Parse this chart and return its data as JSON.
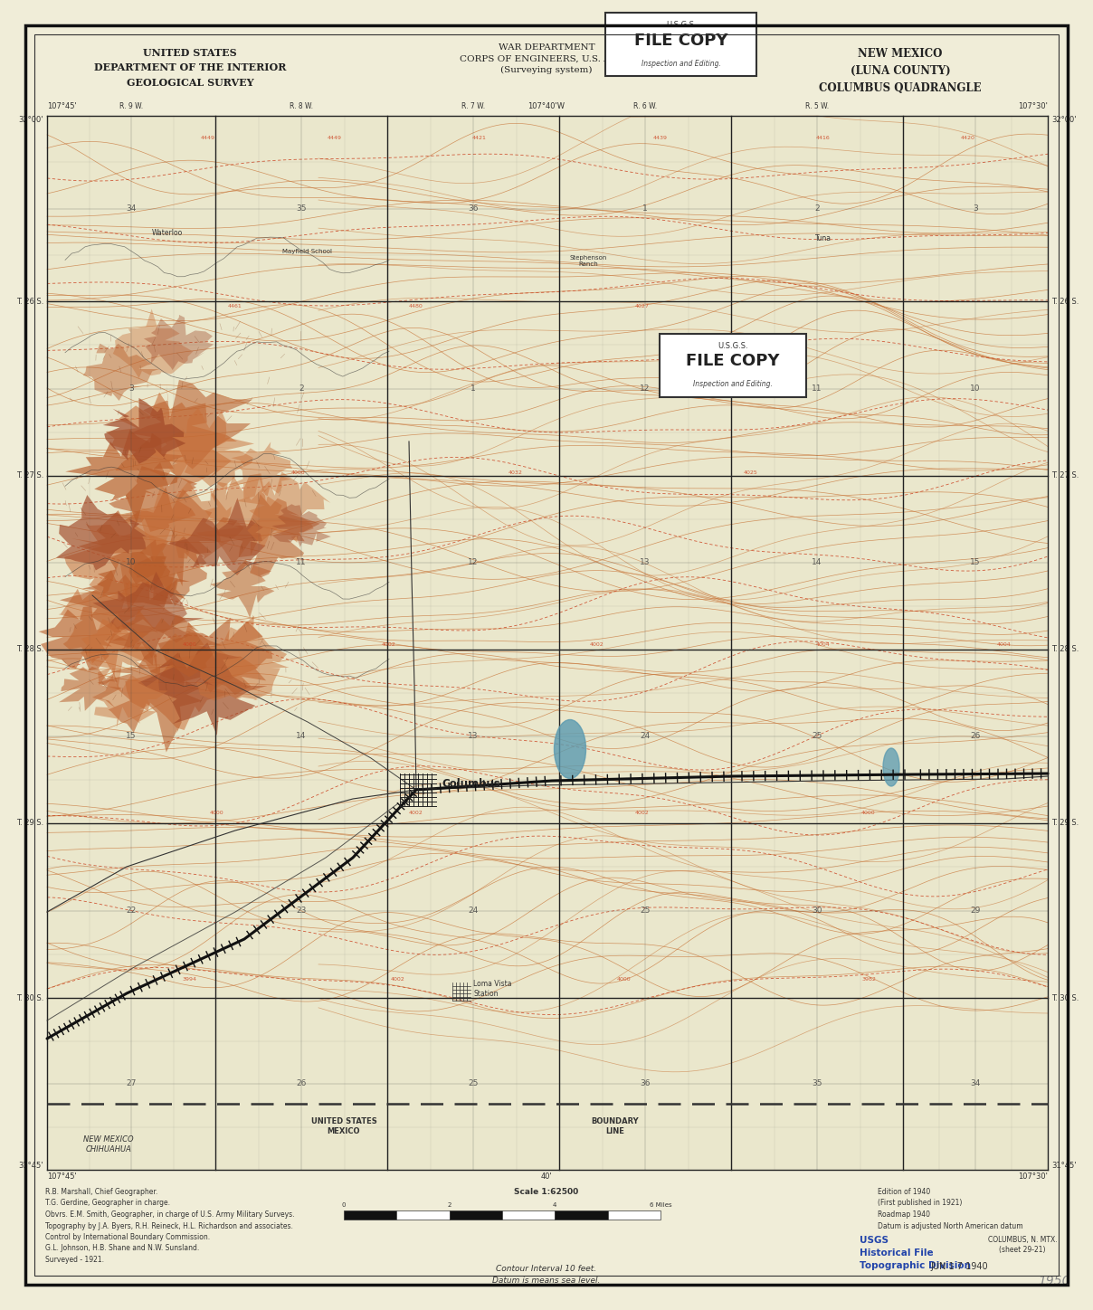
{
  "bg_color": "#f0edd8",
  "map_bg": "#eae7cc",
  "border_color": "#222222",
  "title_top_left": "UNITED STATES\nDEPARTMENT OF THE INTERIOR\nGEOLOGICAL SURVEY",
  "title_top_center": "WAR DEPARTMENT\nCORPS OF ENGINEERS, U.S. ARMY\n(Surveying system)",
  "title_top_right": "NEW MEXICO\n(LUNA COUNTY)\nCOLUMBUS QUADRANGLE",
  "contour_color": "#c8763a",
  "contour_color2": "#d4804a",
  "water_color": "#5a9ab0",
  "grid_color": "#222222",
  "mountain_fill": "#b85c2a",
  "mountain_fill2": "#c8703a",
  "town_label": "Columbus",
  "bottom_left_text": "R.B. Marshall, Chief Geographer.\nT.G. Gerdine, Geographer in charge.\nObvrs. E.M. Smith, Geographer, in charge of U.S. Army Military Surveys.\nTopography by J.A. Byers, R.H. Reineck, H.L. Richardson and associates.\nControl by International Boundary Commission.\nG.L. Johnson, H.B. Shane and N.W. Sunsland.\nSurveyed - 1921.",
  "bottom_right_text": "Edition of 1940\n(First published in 1921)\nRoadmap 1940\nDatum is adjusted North American datum",
  "contour_interval_text": "Contour Interval 10 feet.\nDatum is means sea level.",
  "date_stamp": "JUN 1 7 1940",
  "year_stamp": "1950",
  "usgs_label": "USGS\nHistorical File\nTopographic Division",
  "stamp_text_top": "U.S.G.S.\nFILE COPY\nInspection and Editing.",
  "stamp_text_bottom": "U.S.G.S.\nFILE COPY\nInspection and Editing.",
  "boundary_text": "UNITED STATES\nMEXICO     BOUNDARY\nLINE",
  "nm_chihuahua": "NEW MEXICO\nCHIHUAHUA",
  "lat_top_left": "32°00'",
  "lat_bottom_left": "31°45'",
  "lon_top_left": "107°45'",
  "lon_top_mid": "107°40'W",
  "lon_top_right": "107°30'",
  "lon_bot_left": "107°45'",
  "lon_bot_mid": "40'",
  "lon_bot_right": "107°30'",
  "township_right": [
    "T. 26 S.",
    "T. 27 S.",
    "T. 28 S.",
    "T. 29 S.",
    "T. 30 S."
  ],
  "township_left": [
    "T. 26 S.",
    "T. 27 S.",
    "T. 28 S.",
    "T. 29 S.",
    "T. 30 S."
  ],
  "range_top": [
    "R. 9 W.",
    "R. 8 W.",
    "R. 7 W.",
    "R. 6 W.",
    "R. 5 W."
  ],
  "scale_note": "SCALE 1:62500"
}
